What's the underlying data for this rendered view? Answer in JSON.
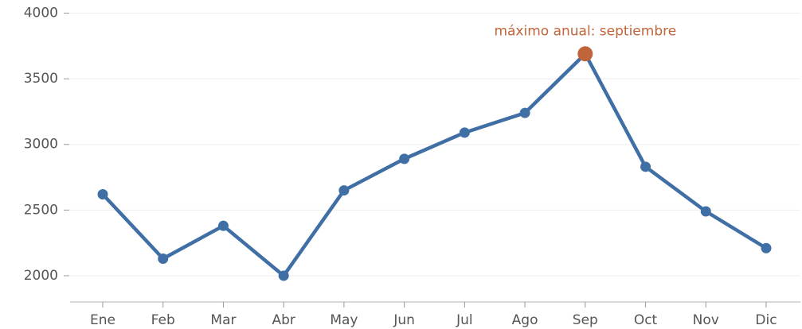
{
  "chart_data": {
    "type": "line",
    "categories": [
      "Ene",
      "Feb",
      "Mar",
      "Abr",
      "May",
      "Jun",
      "Jul",
      "Ago",
      "Sep",
      "Oct",
      "Nov",
      "Dic"
    ],
    "series": [
      {
        "color": "#3f6fa5",
        "values": [
          2620,
          2130,
          2380,
          2000,
          2650,
          2890,
          3090,
          3240,
          3690,
          2830,
          2490,
          2210
        ]
      }
    ],
    "ylim": [
      1800,
      4100
    ],
    "yticks": [
      2000,
      2500,
      3000,
      3500,
      4000
    ],
    "grid": true,
    "annotation": {
      "text": "máximo anual: septiembre",
      "category": "Sep",
      "color": "#c0653a"
    }
  }
}
